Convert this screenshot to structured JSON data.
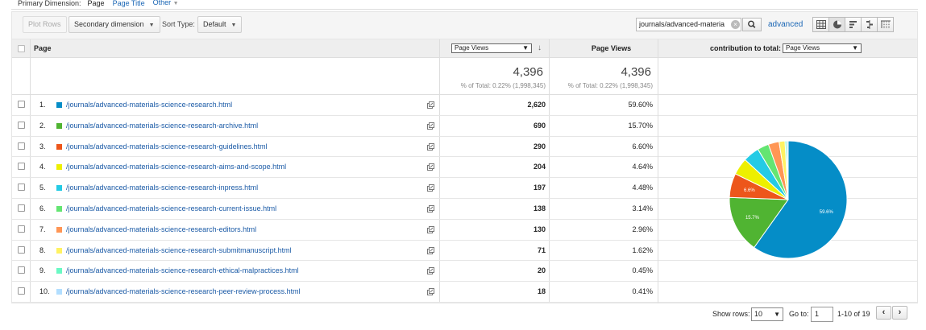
{
  "primary_dimension": {
    "label": "Primary Dimension:",
    "current": "Page",
    "options": [
      "Page Title",
      "Other"
    ]
  },
  "toolbar": {
    "plot_rows": "Plot Rows",
    "secondary_dimension": "Secondary dimension",
    "sort_type_label": "Sort Type:",
    "sort_type_value": "Default",
    "search_value": "journals/advanced-materia",
    "advanced": "advanced"
  },
  "table": {
    "col_page": "Page",
    "metric_select": "Page Views",
    "col_pageviews": "Page Views",
    "contribution_label": "contribution to total:",
    "contribution_select": "Page Views",
    "totals": {
      "value1": "4,396",
      "sub1": "% of Total: 0.22% (1,998,345)",
      "value2": "4,396",
      "sub2": "% of Total: 0.22% (1,998,345)"
    },
    "rows": [
      {
        "num": "1.",
        "page": "/journals/advanced-materials-science-research.html",
        "views": "2,620",
        "pct": "59.60%",
        "color": "#058dc7"
      },
      {
        "num": "2.",
        "page": "/journals/advanced-materials-science-research-archive.html",
        "views": "690",
        "pct": "15.70%",
        "color": "#50b432"
      },
      {
        "num": "3.",
        "page": "/journals/advanced-materials-science-research-guidelines.html",
        "views": "290",
        "pct": "6.60%",
        "color": "#ed561b"
      },
      {
        "num": "4.",
        "page": "/journals/advanced-materials-science-research-aims-and-scope.html",
        "views": "204",
        "pct": "4.64%",
        "color": "#edef00"
      },
      {
        "num": "5.",
        "page": "/journals/advanced-materials-science-research-inpress.html",
        "views": "197",
        "pct": "4.48%",
        "color": "#24cbe5"
      },
      {
        "num": "6.",
        "page": "/journals/advanced-materials-science-research-current-issue.html",
        "views": "138",
        "pct": "3.14%",
        "color": "#64e572"
      },
      {
        "num": "7.",
        "page": "/journals/advanced-materials-science-research-editors.html",
        "views": "130",
        "pct": "2.96%",
        "color": "#ff9655"
      },
      {
        "num": "8.",
        "page": "/journals/advanced-materials-science-research-submitmanuscript.html",
        "views": "71",
        "pct": "1.62%",
        "color": "#fff263"
      },
      {
        "num": "9.",
        "page": "/journals/advanced-materials-science-research-ethical-malpractices.html",
        "views": "20",
        "pct": "0.45%",
        "color": "#6af9c4"
      },
      {
        "num": "10.",
        "page": "/journals/advanced-materials-science-research-peer-review-process.html",
        "views": "18",
        "pct": "0.41%",
        "color": "#b2deff"
      }
    ]
  },
  "chart_data": {
    "type": "pie",
    "categories": [
      "1",
      "2",
      "3",
      "4",
      "5",
      "6",
      "7",
      "8",
      "9",
      "10"
    ],
    "values": [
      59.6,
      15.7,
      6.6,
      4.64,
      4.48,
      3.14,
      2.96,
      1.62,
      0.45,
      0.41
    ],
    "slice_labels": [
      "59.6%",
      "15.7%",
      "6.6%",
      "",
      "",
      "",
      "",
      "",
      "",
      ""
    ],
    "colors": [
      "#058dc7",
      "#50b432",
      "#ed561b",
      "#edef00",
      "#24cbe5",
      "#64e572",
      "#ff9655",
      "#fff263",
      "#6af9c4",
      "#b2deff"
    ]
  },
  "footer": {
    "show_rows_label": "Show rows:",
    "show_rows_value": "10",
    "goto_label": "Go to:",
    "goto_value": "1",
    "range": "1-10 of 19",
    "prev": "‹",
    "next": "›"
  }
}
